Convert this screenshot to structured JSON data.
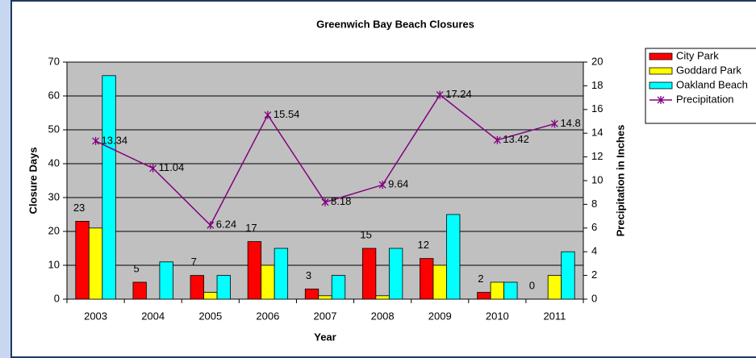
{
  "chart_data": {
    "type": "bar",
    "title": "Greenwich Bay Beach Closures",
    "x_label": "Year",
    "y_label": "Closure Days",
    "y2_label": "Precipitation in Inches",
    "categories": [
      "2003",
      "2004",
      "2005",
      "2006",
      "2007",
      "2008",
      "2009",
      "2010",
      "2011"
    ],
    "series": [
      {
        "name": "City Park",
        "color": "#ff0000",
        "type": "bar",
        "show_labels": true,
        "values": [
          23,
          5,
          7,
          17,
          3,
          15,
          12,
          2,
          0
        ]
      },
      {
        "name": "Goddard Park",
        "color": "#ffff00",
        "type": "bar",
        "values": [
          21,
          0,
          2,
          10,
          1,
          1,
          10,
          5,
          7
        ]
      },
      {
        "name": "Oakland Beach",
        "color": "#00ffff",
        "type": "bar",
        "values": [
          66,
          11,
          7,
          15,
          7,
          15,
          25,
          5,
          14
        ]
      },
      {
        "name": "Precipitation",
        "color": "#800080",
        "type": "line",
        "axis": "y2",
        "show_labels": true,
        "values": [
          13.34,
          11.04,
          6.24,
          15.54,
          8.18,
          9.64,
          17.24,
          13.42,
          14.8
        ]
      }
    ],
    "ylim": [
      0,
      70
    ],
    "yticks": [
      0,
      10,
      20,
      30,
      40,
      50,
      60,
      70
    ],
    "y2lim": [
      0,
      20
    ],
    "y2ticks": [
      0,
      2,
      4,
      6,
      8,
      10,
      12,
      14,
      16,
      18,
      20
    ],
    "grid": true,
    "plot_background": "#c0c0c0",
    "legend": "right"
  }
}
